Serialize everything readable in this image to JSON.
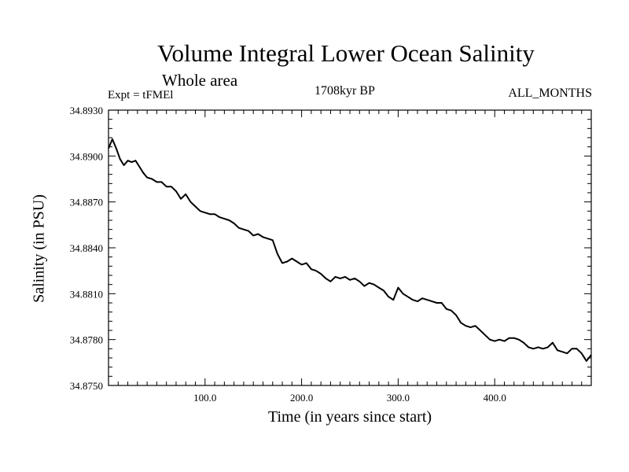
{
  "chart_data": {
    "type": "line",
    "title": "Volume Integral Lower Ocean Salinity",
    "subtitle": "Whole area",
    "experiment": "Expt = tFMEl",
    "period": "1708kyr BP",
    "months": "ALL_MONTHS",
    "xlabel": "Time (in years since start)",
    "ylabel": "Salinity (in PSU)",
    "xlim": [
      0,
      500
    ],
    "ylim": [
      34.875,
      34.893
    ],
    "grid": false,
    "xticks": [
      {
        "value": 100,
        "label": "100.0"
      },
      {
        "value": 200,
        "label": "200.0"
      },
      {
        "value": 300,
        "label": "300.0"
      },
      {
        "value": 400,
        "label": "400.0"
      }
    ],
    "yticks": [
      {
        "value": 34.893,
        "label": "34.8930"
      },
      {
        "value": 34.89,
        "label": "34.8900"
      },
      {
        "value": 34.887,
        "label": "34.8870"
      },
      {
        "value": 34.884,
        "label": "34.8840"
      },
      {
        "value": 34.881,
        "label": "34.8810"
      },
      {
        "value": 34.878,
        "label": "34.8780"
      },
      {
        "value": 34.875,
        "label": "34.8750"
      }
    ],
    "series": [
      {
        "name": "Salinity",
        "x": [
          0,
          4,
          8,
          12,
          16,
          20,
          24,
          28,
          32,
          36,
          40,
          45,
          50,
          55,
          60,
          65,
          70,
          75,
          80,
          85,
          90,
          95,
          100,
          105,
          110,
          115,
          120,
          125,
          130,
          135,
          140,
          145,
          150,
          155,
          160,
          165,
          170,
          175,
          180,
          185,
          190,
          195,
          200,
          205,
          210,
          215,
          220,
          225,
          230,
          235,
          240,
          245,
          250,
          255,
          260,
          265,
          270,
          275,
          280,
          285,
          290,
          295,
          300,
          305,
          310,
          315,
          320,
          325,
          330,
          335,
          340,
          345,
          350,
          355,
          360,
          365,
          370,
          375,
          380,
          385,
          390,
          395,
          400,
          405,
          410,
          415,
          420,
          425,
          430,
          435,
          440,
          445,
          450,
          455,
          460,
          465,
          470,
          475,
          480,
          485,
          490,
          495,
          500
        ],
        "values": [
          34.8905,
          34.8911,
          34.8905,
          34.8898,
          34.8894,
          34.8897,
          34.8896,
          34.8897,
          34.8893,
          34.8889,
          34.8886,
          34.8885,
          34.8883,
          34.8883,
          34.888,
          34.888,
          34.8877,
          34.8872,
          34.8875,
          34.887,
          34.8867,
          34.8864,
          34.8863,
          34.8862,
          34.8862,
          34.886,
          34.8859,
          34.8858,
          34.8856,
          34.8853,
          34.8852,
          34.8851,
          34.8848,
          34.8849,
          34.8847,
          34.8846,
          34.8845,
          34.8836,
          34.883,
          34.8831,
          34.8833,
          34.8831,
          34.8829,
          34.883,
          34.8826,
          34.8825,
          34.8823,
          34.882,
          34.8818,
          34.8821,
          34.882,
          34.8821,
          34.8819,
          34.882,
          34.8818,
          34.8815,
          34.8817,
          34.8816,
          34.8814,
          34.8812,
          34.8808,
          34.8806,
          34.8814,
          34.881,
          34.8808,
          34.8806,
          34.8805,
          34.8807,
          34.8806,
          34.8805,
          34.8804,
          34.8804,
          34.88,
          34.8799,
          34.8796,
          34.8791,
          34.8789,
          34.8788,
          34.8789,
          34.8786,
          34.8783,
          34.878,
          34.8779,
          34.878,
          34.8779,
          34.8781,
          34.8781,
          34.878,
          34.8778,
          34.8775,
          34.8774,
          34.8775,
          34.8774,
          34.8775,
          34.8778,
          34.8773,
          34.8772,
          34.8771,
          34.8774,
          34.8774,
          34.8771,
          34.8766,
          34.877
        ]
      }
    ]
  }
}
